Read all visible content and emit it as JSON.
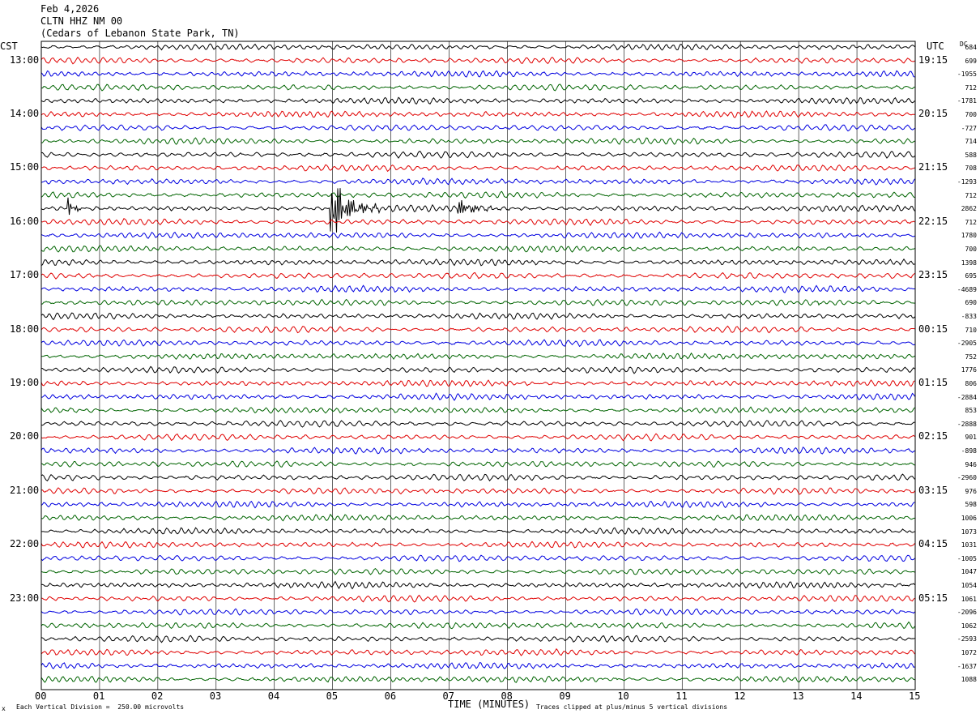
{
  "header": {
    "date": "Feb 4,2026",
    "station": "CLTN HHZ NM 00",
    "location": "(Cedars of Lebanon State Park, TN)"
  },
  "left_timezone": "CST",
  "right_timezone": "UTC",
  "dc_label": "DC",
  "footer": {
    "scale_note": "Each Vertical Division =  250.00 microvolts",
    "clip_note": "Traces clipped at plus/minus 5 vertical divisions",
    "scale_glyph": "x"
  },
  "colors": {
    "trace_cycle": [
      "#000000",
      "#e00000",
      "#0000e0",
      "#006400"
    ],
    "grid": "#000000"
  },
  "chart_data": {
    "type": "line",
    "xlabel": "TIME (MINUTES)",
    "x_ticks": [
      "00",
      "01",
      "02",
      "03",
      "04",
      "05",
      "06",
      "07",
      "08",
      "09",
      "10",
      "11",
      "12",
      "13",
      "14",
      "15"
    ],
    "xlim": [
      0,
      15
    ],
    "rows_per_hour": 4,
    "left_hour_labels": [
      "13:00",
      "14:00",
      "15:00",
      "16:00",
      "17:00",
      "18:00",
      "19:00",
      "20:00",
      "21:00",
      "22:00",
      "23:00"
    ],
    "right_hour_labels": [
      "19:15",
      "20:15",
      "21:15",
      "22:15",
      "23:15",
      "00:15",
      "01:15",
      "02:15",
      "03:15",
      "04:15",
      "05:15"
    ],
    "dc_offsets": [
      "684",
      "699",
      "-1955",
      "712",
      "-1781",
      "700",
      "-727",
      "714",
      "588",
      "708",
      "-1293",
      "712",
      "2862",
      "712",
      "1780",
      "700",
      "1398",
      "695",
      "-4689",
      "690",
      "-833",
      "710",
      "-2905",
      "752",
      "1776",
      "806",
      "-2884",
      "853",
      "-2888",
      "901",
      "-898",
      "946",
      "-2960",
      "976",
      "598",
      "1006",
      "1073",
      "1031",
      "-1005",
      "1047",
      "1054",
      "1061",
      "-2096",
      "1062",
      "-2593",
      "1072",
      "-1637",
      "1088"
    ],
    "events": [
      {
        "row": 12,
        "minute": 0.45,
        "duration": 0.3,
        "amplitude": "high"
      },
      {
        "row": 12,
        "minute": 4.95,
        "duration": 0.9,
        "amplitude": "clipped"
      },
      {
        "row": 12,
        "minute": 7.15,
        "duration": 0.95,
        "amplitude": "medium"
      },
      {
        "row": 19,
        "minute": 13.25,
        "duration": 0.15,
        "amplitude": "medium"
      }
    ]
  }
}
